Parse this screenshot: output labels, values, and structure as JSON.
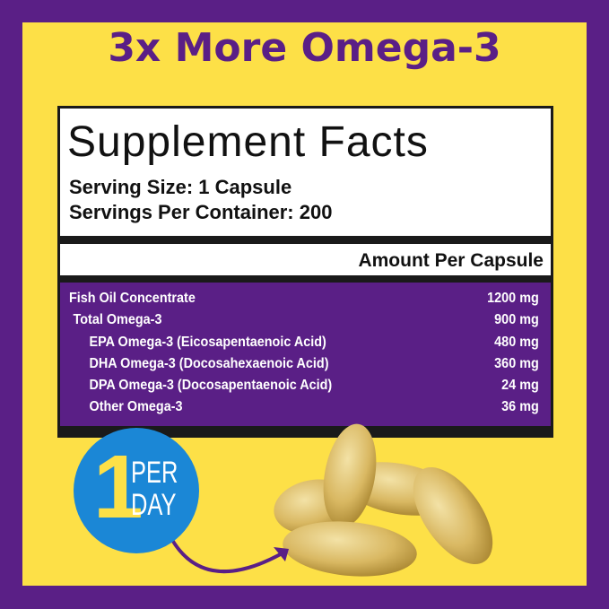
{
  "headline": "3x More Omega-3",
  "label": {
    "title": "Supplement Facts",
    "serving_size": "Serving Size: 1 Capsule",
    "servings_per_container": "Servings Per Container: 200",
    "amount_header": "Amount Per Capsule",
    "rows": [
      {
        "name": "Fish Oil Concentrate",
        "amount": "1200 mg"
      },
      {
        "name": "Total Omega-3",
        "amount": "900 mg"
      },
      {
        "name": "EPA Omega-3 (Eicosapentaenoic Acid)",
        "amount": "480 mg"
      },
      {
        "name": "DHA Omega-3 (Docosahexaenoic Acid)",
        "amount": "360 mg"
      },
      {
        "name": "DPA Omega-3 (Docosapentaenoic Acid)",
        "amount": "24 mg"
      },
      {
        "name": "Other Omega-3",
        "amount": "36 mg"
      }
    ]
  },
  "badge": {
    "number": "1",
    "line1": "PER",
    "line2": "DAY"
  },
  "colors": {
    "purple": "#5a1f86",
    "yellow": "#fde047",
    "blue": "#1b87d6"
  }
}
